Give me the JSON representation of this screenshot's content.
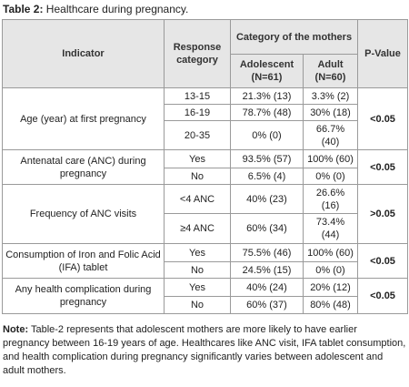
{
  "title": {
    "label": "Table 2:",
    "text": " Healthcare during pregnancy."
  },
  "table": {
    "header": {
      "indicator": "Indicator",
      "response": "Response category",
      "category": "Category of the mothers",
      "adolescent": "Adolescent (N=61)",
      "adult": "Adult (N=60)",
      "p_value": "P-Value"
    },
    "groups": [
      {
        "indicator": "Age (year) at first pregnancy",
        "p_value": "<0.05",
        "rows": [
          [
            "13-15",
            "21.3% (13)",
            "3.3% (2)"
          ],
          [
            "16-19",
            "78.7% (48)",
            "30% (18)"
          ],
          [
            "20-35",
            "0% (0)",
            "66.7% (40)"
          ]
        ]
      },
      {
        "indicator": "Antenatal care (ANC) during pregnancy",
        "p_value": "<0.05",
        "rows": [
          [
            "Yes",
            "93.5% (57)",
            "100% (60)"
          ],
          [
            "No",
            "6.5% (4)",
            "0% (0)"
          ]
        ]
      },
      {
        "indicator": "Frequency of ANC visits",
        "p_value": ">0.05",
        "rows": [
          [
            "<4 ANC",
            "40% (23)",
            "26.6% (16)"
          ],
          [
            "≥4 ANC",
            "60% (34)",
            "73.4% (44)"
          ]
        ]
      },
      {
        "indicator": "Consumption of Iron and Folic Acid (IFA) tablet",
        "p_value": "<0.05",
        "rows": [
          [
            "Yes",
            "75.5% (46)",
            "100% (60)"
          ],
          [
            "No",
            "24.5% (15)",
            "0% (0)"
          ]
        ]
      },
      {
        "indicator": "Any health complication during pregnancy",
        "p_value": "<0.05",
        "rows": [
          [
            "Yes",
            "40% (24)",
            "20% (12)"
          ],
          [
            "No",
            "60% (37)",
            "80% (48)"
          ]
        ]
      }
    ]
  },
  "note": {
    "label": "Note:",
    "text": " Table-2 represents that adolescent mothers are more likely to have earlier pregnancy between 16-19 years of age. Healthcares like ANC visit, IFA tablet consumption, and health complication during pregnancy significantly varies between adolescent and adult mothers."
  }
}
